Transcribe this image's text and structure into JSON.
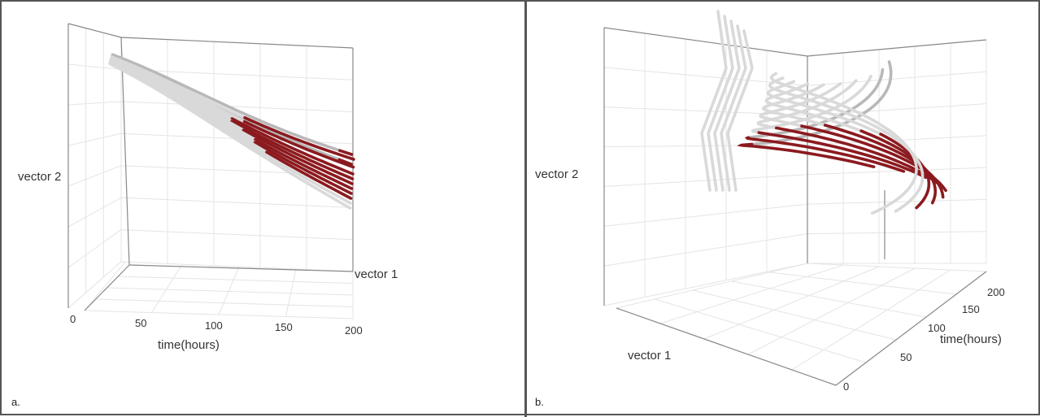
{
  "chart_data": [
    {
      "panel_label": "a.",
      "type": "line3d",
      "axes": {
        "x": {
          "label": "time(hours)",
          "ticks": [
            "0",
            "50",
            "100",
            "150",
            "200"
          ],
          "range": [
            0,
            200
          ]
        },
        "y": {
          "label": "vector 1"
        },
        "z": {
          "label": "vector 2"
        }
      },
      "grid": true,
      "colors": {
        "early": "#d9d9d9",
        "mid": "#b8b8b8",
        "late": "#8b1a1f"
      },
      "trajectories": [
        {
          "start": [
            0,
            0.95,
            0.92
          ],
          "end": [
            200,
            -0.15,
            0.55
          ],
          "late_from": 0.95
        },
        {
          "start": [
            0,
            0.9,
            0.88
          ],
          "end": [
            200,
            -0.2,
            0.45
          ],
          "late_from": 0.95
        },
        {
          "start": [
            0,
            0.85,
            0.85
          ],
          "end": [
            200,
            0.1,
            0.5
          ],
          "late_from": 0.55
        },
        {
          "start": [
            0,
            0.8,
            0.82
          ],
          "end": [
            200,
            0.05,
            0.42
          ],
          "late_from": 0.55
        },
        {
          "start": [
            0,
            0.78,
            0.8
          ],
          "end": [
            200,
            0.0,
            0.35
          ],
          "late_from": 0.5
        },
        {
          "start": [
            0,
            0.75,
            0.77
          ],
          "end": [
            200,
            -0.05,
            0.3
          ],
          "late_from": 0.5
        },
        {
          "start": [
            0,
            0.72,
            0.75
          ],
          "end": [
            200,
            -0.1,
            0.25
          ],
          "late_from": 0.55
        },
        {
          "start": [
            0,
            0.7,
            0.72
          ],
          "end": [
            200,
            -0.15,
            0.2
          ],
          "late_from": 0.6
        },
        {
          "start": [
            0,
            0.68,
            0.7
          ],
          "end": [
            200,
            -0.2,
            0.15
          ],
          "late_from": 0.6
        },
        {
          "start": [
            0,
            0.65,
            0.68
          ],
          "end": [
            200,
            -0.25,
            0.1
          ],
          "late_from": 0.65
        },
        {
          "start": [
            0,
            0.62,
            0.66
          ],
          "end": [
            200,
            -0.3,
            0.05
          ],
          "late_from": 1.0
        },
        {
          "start": [
            0,
            0.6,
            0.64
          ],
          "end": [
            200,
            -0.35,
            0.0
          ],
          "late_from": 1.0
        }
      ]
    },
    {
      "panel_label": "b.",
      "type": "line3d",
      "axes": {
        "x": {
          "label": "time(hours)",
          "ticks": [
            "0",
            "50",
            "100",
            "150",
            "200"
          ],
          "range": [
            0,
            200
          ]
        },
        "y": {
          "label": "vector 1"
        },
        "z": {
          "label": "vector 2"
        }
      },
      "grid": true,
      "colors": {
        "early": "#d9d9d9",
        "mid": "#b8b8b8",
        "late": "#8b1a1f"
      },
      "trajectories": [
        {
          "loop": 0.95,
          "height": 0.9,
          "phase": 0.0,
          "late_from": 0.55
        },
        {
          "loop": 0.9,
          "height": 0.85,
          "phase": 0.3,
          "late_from": 0.55
        },
        {
          "loop": 0.85,
          "height": 0.8,
          "phase": 0.6,
          "late_from": 0.6
        },
        {
          "loop": 0.8,
          "height": 0.78,
          "phase": 0.9,
          "late_from": 0.6
        },
        {
          "loop": 0.78,
          "height": 0.75,
          "phase": 1.2,
          "late_from": 0.62
        },
        {
          "loop": 0.75,
          "height": 0.72,
          "phase": 1.5,
          "late_from": 0.62
        },
        {
          "loop": 0.72,
          "height": 0.7,
          "phase": 1.8,
          "late_from": 0.65
        },
        {
          "loop": 0.7,
          "height": 0.68,
          "phase": 2.1,
          "late_from": 0.65
        },
        {
          "loop": 0.68,
          "height": 0.66,
          "phase": 2.4,
          "late_from": 1.0
        },
        {
          "loop": 0.66,
          "height": 0.64,
          "phase": 2.7,
          "late_from": 1.0
        }
      ]
    }
  ]
}
